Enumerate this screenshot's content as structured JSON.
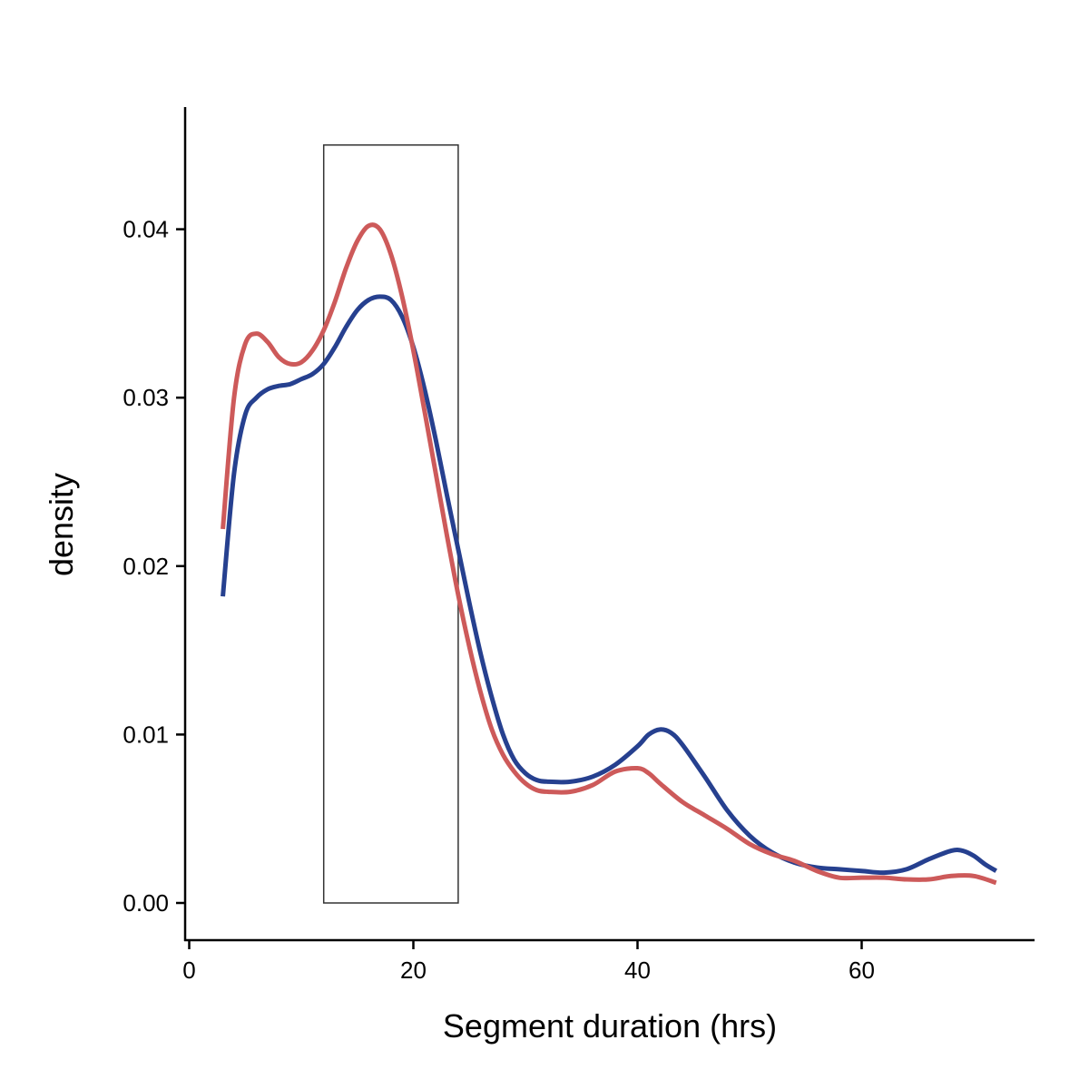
{
  "chart_data": {
    "type": "line",
    "title": "",
    "xlabel": "Segment duration (hrs)",
    "ylabel": "density",
    "xlim": [
      -0.5,
      75
    ],
    "ylim": [
      -0.0022,
      0.047
    ],
    "x_ticks": [
      0,
      20,
      40,
      60
    ],
    "x_tick_labels": [
      "0",
      "20",
      "40",
      "60"
    ],
    "y_ticks": [
      0.0,
      0.01,
      0.02,
      0.03,
      0.04
    ],
    "y_tick_labels": [
      "0.00",
      "0.01",
      "0.02",
      "0.03",
      "0.04"
    ],
    "grid": false,
    "legend": "none",
    "highlight_range": {
      "x": [
        12,
        24
      ],
      "y": [
        0,
        0.045
      ]
    },
    "series": [
      {
        "color": "#26408F",
        "points": [
          [
            3,
            0.0182
          ],
          [
            4,
            0.0255
          ],
          [
            5,
            0.029
          ],
          [
            6,
            0.03
          ],
          [
            7,
            0.0305
          ],
          [
            8,
            0.0307
          ],
          [
            9,
            0.0308
          ],
          [
            10,
            0.0311
          ],
          [
            11,
            0.0314
          ],
          [
            12,
            0.032
          ],
          [
            13,
            0.033
          ],
          [
            14,
            0.0342
          ],
          [
            15,
            0.0352
          ],
          [
            16,
            0.0358
          ],
          [
            17,
            0.036
          ],
          [
            18,
            0.0358
          ],
          [
            19,
            0.0348
          ],
          [
            20,
            0.033
          ],
          [
            21,
            0.0305
          ],
          [
            22,
            0.0275
          ],
          [
            23,
            0.0242
          ],
          [
            24,
            0.021
          ],
          [
            25,
            0.0178
          ],
          [
            26,
            0.0148
          ],
          [
            27,
            0.0122
          ],
          [
            28,
            0.01
          ],
          [
            29,
            0.0085
          ],
          [
            30,
            0.0077
          ],
          [
            31,
            0.0073
          ],
          [
            32,
            0.0072
          ],
          [
            34,
            0.0072
          ],
          [
            36,
            0.0075
          ],
          [
            38,
            0.0082
          ],
          [
            40,
            0.0093
          ],
          [
            41,
            0.01
          ],
          [
            42,
            0.0103
          ],
          [
            43,
            0.0101
          ],
          [
            44,
            0.0094
          ],
          [
            46,
            0.0075
          ],
          [
            48,
            0.0055
          ],
          [
            50,
            0.004
          ],
          [
            52,
            0.003
          ],
          [
            54,
            0.0024
          ],
          [
            56,
            0.0021
          ],
          [
            58,
            0.002
          ],
          [
            60,
            0.0019
          ],
          [
            62,
            0.0018
          ],
          [
            64,
            0.002
          ],
          [
            66,
            0.0026
          ],
          [
            68,
            0.0031
          ],
          [
            69,
            0.0031
          ],
          [
            70,
            0.0028
          ],
          [
            71,
            0.0023
          ],
          [
            72,
            0.0019
          ]
        ]
      },
      {
        "color": "#CD5A5A",
        "points": [
          [
            3,
            0.0222
          ],
          [
            4,
            0.03
          ],
          [
            5,
            0.0332
          ],
          [
            6,
            0.0338
          ],
          [
            7,
            0.0333
          ],
          [
            8,
            0.0324
          ],
          [
            9,
            0.032
          ],
          [
            10,
            0.0321
          ],
          [
            11,
            0.0328
          ],
          [
            12,
            0.034
          ],
          [
            13,
            0.0357
          ],
          [
            14,
            0.0377
          ],
          [
            15,
            0.0393
          ],
          [
            16,
            0.0402
          ],
          [
            17,
            0.04
          ],
          [
            18,
            0.0385
          ],
          [
            19,
            0.036
          ],
          [
            20,
            0.0328
          ],
          [
            21,
            0.0292
          ],
          [
            22,
            0.0255
          ],
          [
            23,
            0.0218
          ],
          [
            24,
            0.0183
          ],
          [
            25,
            0.0152
          ],
          [
            26,
            0.0125
          ],
          [
            27,
            0.0103
          ],
          [
            28,
            0.0088
          ],
          [
            29,
            0.0078
          ],
          [
            30,
            0.0071
          ],
          [
            31,
            0.0067
          ],
          [
            32,
            0.0066
          ],
          [
            34,
            0.0066
          ],
          [
            36,
            0.007
          ],
          [
            38,
            0.0078
          ],
          [
            40,
            0.008
          ],
          [
            41,
            0.0077
          ],
          [
            42,
            0.0071
          ],
          [
            44,
            0.006
          ],
          [
            46,
            0.0052
          ],
          [
            48,
            0.0044
          ],
          [
            50,
            0.0035
          ],
          [
            52,
            0.0029
          ],
          [
            54,
            0.0025
          ],
          [
            56,
            0.0019
          ],
          [
            58,
            0.0015
          ],
          [
            60,
            0.0015
          ],
          [
            62,
            0.0015
          ],
          [
            64,
            0.0014
          ],
          [
            66,
            0.0014
          ],
          [
            68,
            0.0016
          ],
          [
            70,
            0.0016
          ],
          [
            72,
            0.0012
          ]
        ]
      }
    ]
  }
}
